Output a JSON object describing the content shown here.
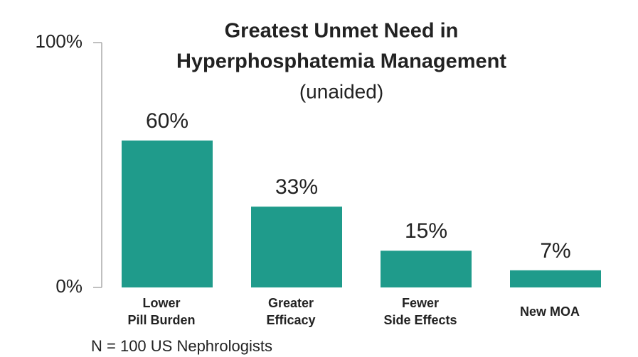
{
  "chart_data": {
    "type": "bar",
    "title": "Greatest Unmet Need in\nHyperphosphatemia Management",
    "subtitle": "(unaided)",
    "categories": [
      "Lower\nPill Burden",
      "Greater\nEfficacy",
      "Fewer\nSide Effects",
      "New MOA"
    ],
    "values": [
      60,
      33,
      15,
      7
    ],
    "value_labels": [
      "60%",
      "33%",
      "15%",
      "7%"
    ],
    "color": "#1f9b8b",
    "ylim": [
      0,
      100
    ],
    "yticks": [
      {
        "value": 0,
        "label": "0%"
      },
      {
        "value": 100,
        "label": "100%"
      }
    ],
    "grid": false,
    "annotation": "N = 100 US Nephrologists"
  }
}
